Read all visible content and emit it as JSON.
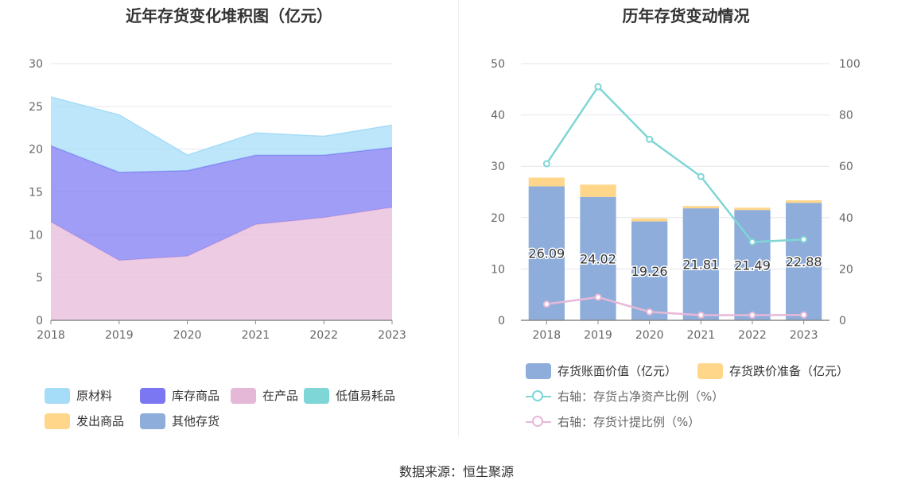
{
  "source_label": "数据来源：恒生聚源",
  "chart_data": [
    {
      "type": "area",
      "title": "近年存货变化堆积图（亿元）",
      "x": [
        "2018",
        "2019",
        "2020",
        "2021",
        "2022",
        "2023"
      ],
      "ylim": [
        0,
        30
      ],
      "yticks": [
        "0",
        "5",
        "10",
        "15",
        "20",
        "25",
        "30"
      ],
      "grid": true,
      "legend_position": "bottom",
      "series": [
        {
          "name": "在产品",
          "color": "#e6b8d8",
          "values": [
            11.5,
            7.0,
            7.5,
            11.2,
            12.0,
            13.2
          ]
        },
        {
          "name": "库存商品",
          "color": "#7b77f2",
          "values": [
            8.9,
            10.3,
            10.0,
            8.1,
            7.3,
            7.0
          ]
        },
        {
          "name": "原材料",
          "color": "#a5dcf8",
          "values": [
            5.7,
            6.7,
            1.8,
            2.6,
            2.2,
            2.6
          ]
        },
        {
          "name": "低值易耗品",
          "color": "#7fd6d6",
          "values": [
            0,
            0,
            0,
            0,
            0,
            0
          ]
        },
        {
          "name": "发出商品",
          "color": "#ffd68a",
          "values": [
            0,
            0,
            0,
            0,
            0,
            0
          ]
        },
        {
          "name": "其他存货",
          "color": "#8eadda",
          "values": [
            0,
            0,
            0,
            0,
            0,
            0
          ]
        }
      ],
      "legend": [
        {
          "name": "原材料",
          "color": "#a5dcf8"
        },
        {
          "name": "库存商品",
          "color": "#7b77f2"
        },
        {
          "name": "在产品",
          "color": "#e6b8d8"
        },
        {
          "name": "低值易耗品",
          "color": "#7fd6d6"
        },
        {
          "name": "发出商品",
          "color": "#ffd68a"
        },
        {
          "name": "其他存货",
          "color": "#8eadda"
        }
      ]
    },
    {
      "type": "bar",
      "title": "历年存货变动情况",
      "categories": [
        "2018",
        "2019",
        "2020",
        "2021",
        "2022",
        "2023"
      ],
      "ylim": [
        0,
        50
      ],
      "yticks": [
        "0",
        "10",
        "20",
        "30",
        "40",
        "50"
      ],
      "y2lim": [
        0,
        100
      ],
      "y2ticks": [
        "0",
        "20",
        "40",
        "60",
        "80",
        "100"
      ],
      "grid": true,
      "legend_position": "bottom",
      "series": [
        {
          "name": "存货账面价值（亿元）",
          "color": "#8eadda",
          "values": [
            26.09,
            24.02,
            19.26,
            21.81,
            21.49,
            22.88
          ],
          "labels": [
            "26.09",
            "24.02",
            "19.26",
            "21.81",
            "21.49",
            "22.88"
          ]
        },
        {
          "name": "存货跌价准备（亿元）",
          "color": "#ffd68a",
          "values": [
            1.7,
            2.4,
            0.6,
            0.45,
            0.45,
            0.5
          ]
        }
      ],
      "line_series": [
        {
          "name": "右轴：存货占净资产比例（%）",
          "color": "#7fd6d6",
          "values": [
            61.0,
            91.0,
            70.5,
            56.0,
            30.5,
            31.5
          ]
        },
        {
          "name": "右轴：存货计提比例（%）",
          "color": "#e6b8d8",
          "values": [
            6.3,
            9.0,
            3.3,
            2.0,
            2.0,
            2.1
          ]
        }
      ]
    }
  ]
}
